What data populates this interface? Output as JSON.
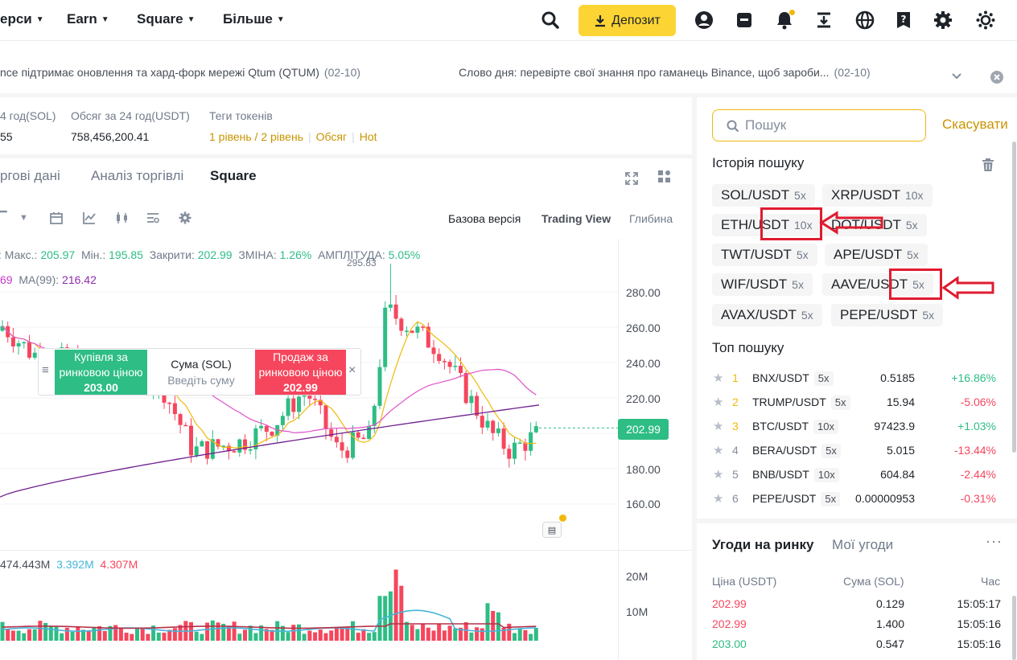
{
  "nav": {
    "menus": [
      "ерси",
      "Earn",
      "Square",
      "Більше"
    ],
    "deposit_label": "Депозит"
  },
  "announcements": [
    {
      "text": "nce підтримає оновлення та хард-форк мережі Qtum (QTUM)",
      "date": "(02-10)"
    },
    {
      "text": "Слово дня: перевірте свої знання про гаманець Binance, щоб зароби...",
      "date": "(02-10)"
    }
  ],
  "stats": {
    "items": [
      {
        "label": "4 год(SOL)",
        "value": "55"
      },
      {
        "label": "Обсяг за 24 год(USDT)",
        "value": "758,456,200.41"
      }
    ],
    "tags_label": "Теги токенів",
    "tags": [
      "1 рівень / 2 рівень",
      "Обсяг",
      "Hot"
    ]
  },
  "chart_tabs": [
    "ргові дані",
    "Аналіз торгівлі",
    "Square"
  ],
  "views": [
    "Базова версія",
    "Trading View",
    "Глибина"
  ],
  "ohlc": {
    "max_label": "Макс.:",
    "max": "205.97",
    "min_label": "Мін.:",
    "min": "195.85",
    "close_label": "Закрити:",
    "close": "202.99",
    "change_label": "ЗМІНА:",
    "change": "1.26%",
    "amp_label": "АМПЛІТУДА:",
    "amp": "5.05%"
  },
  "ma": {
    "first_tail": "69",
    "ma99_label": "MA(99):",
    "ma99": "216.42"
  },
  "chart_data": {
    "type": "candlestick",
    "y_ticks": [
      "280.00",
      "260.00",
      "240.00",
      "220.00",
      "180.00",
      "160.00"
    ],
    "current_price": "202.99",
    "high_marker": "295.83",
    "volume_ticks": [
      "20M",
      "10M"
    ],
    "volume_summary": {
      "total": "474.443M",
      "ma5": "3.392M",
      "ma10": "4.307M"
    }
  },
  "quick_trade": {
    "buy_line1": "Купівля за",
    "buy_line2": "ринковою ціною",
    "buy_price": "203.00",
    "amount_label": "Сума (SOL)",
    "amount_placeholder": "Введіть суму",
    "sell_line1": "Продаж за",
    "sell_line2": "ринковою ціною",
    "sell_price": "202.99",
    "close": "×"
  },
  "search": {
    "placeholder": "Пошук",
    "cancel": "Скасувати",
    "history_title": "Історія пошуку",
    "history": [
      {
        "pair": "SOL/USDT",
        "lev": "5x"
      },
      {
        "pair": "XRP/USDT",
        "lev": "10x"
      },
      {
        "pair": "ETH/USDT",
        "lev": "10x"
      },
      {
        "pair": "DOT/USDT",
        "lev": "5x"
      },
      {
        "pair": "TWT/USDT",
        "lev": "5x"
      },
      {
        "pair": "APE/USDT",
        "lev": "5x"
      },
      {
        "pair": "WIF/USDT",
        "lev": "5x"
      },
      {
        "pair": "AAVE/USDT",
        "lev": "5x"
      },
      {
        "pair": "AVAX/USDT",
        "lev": "5x"
      },
      {
        "pair": "PEPE/USDT",
        "lev": "5x"
      }
    ],
    "top_title": "Топ пошуку",
    "top": [
      {
        "rank": "1",
        "pair": "BNX/USDT",
        "lev": "5x",
        "price": "0.5185",
        "change": "+16.86%",
        "up": true
      },
      {
        "rank": "2",
        "pair": "TRUMP/USDT",
        "lev": "5x",
        "price": "15.94",
        "change": "-5.06%",
        "up": false
      },
      {
        "rank": "3",
        "pair": "BTC/USDT",
        "lev": "10x",
        "price": "97423.9",
        "change": "+1.03%",
        "up": true
      },
      {
        "rank": "4",
        "pair": "BERA/USDT",
        "lev": "5x",
        "price": "5.015",
        "change": "-13.44%",
        "up": false
      },
      {
        "rank": "5",
        "pair": "BNB/USDT",
        "lev": "10x",
        "price": "604.84",
        "change": "-2.44%",
        "up": false
      },
      {
        "rank": "6",
        "pair": "PEPE/USDT",
        "lev": "5x",
        "price": "0.00000953",
        "change": "-0.31%",
        "up": false
      }
    ]
  },
  "trades": {
    "tabs": [
      "Угоди на ринку",
      "Мої угоди"
    ],
    "headers": [
      "Ціна (USDT)",
      "Сума (SOL)",
      "Час"
    ],
    "rows": [
      {
        "price": "202.99",
        "amount": "0.129",
        "time": "15:05:17",
        "side": "sell"
      },
      {
        "price": "202.99",
        "amount": "1.400",
        "time": "15:05:16",
        "side": "sell"
      },
      {
        "price": "203.00",
        "amount": "0.547",
        "time": "15:05:16",
        "side": "buy"
      }
    ]
  },
  "colors": {
    "accent": "#fcd535",
    "up": "#2ebd85",
    "down": "#f6465d",
    "annotation": "#e01b2f"
  }
}
